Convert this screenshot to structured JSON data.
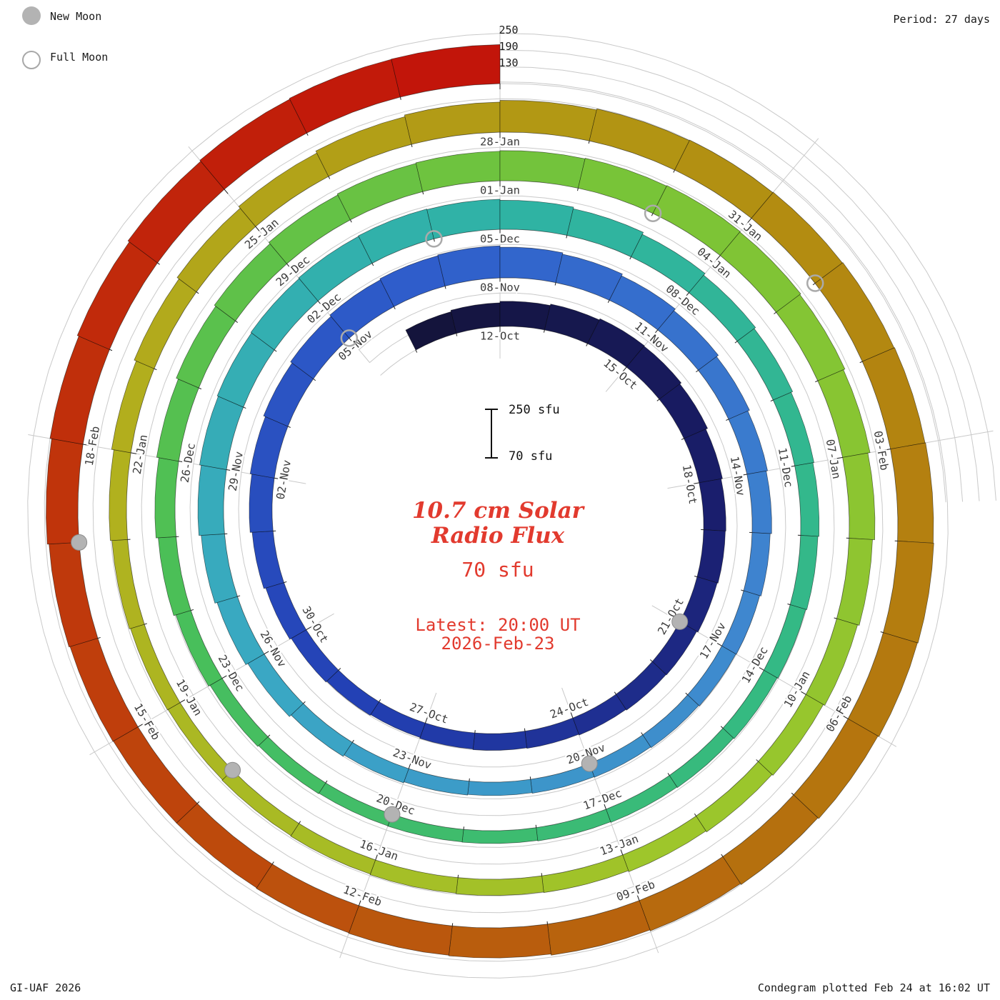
{
  "colors": {
    "accent_red": "#e23a2e",
    "moon_gray": "#b3b3b3",
    "grid_gray": "#c9c9c9",
    "label_gray": "#3c3c3c"
  },
  "legend": {
    "new_moon_label": "New Moon",
    "full_moon_label": "Full Moon"
  },
  "header": {
    "period": "Period: 27 days"
  },
  "axis": {
    "labels": [
      "250",
      "190",
      "130"
    ]
  },
  "scale": {
    "top": "250 sfu",
    "bottom": "70 sfu"
  },
  "center": {
    "title_line1": "10.7 cm Solar",
    "title_line2": "Radio Flux",
    "value": "70 sfu",
    "latest_line1": "Latest: 20:00 UT",
    "latest_line2": "2026-Feb-23"
  },
  "footer": {
    "left": "GI-UAF 2026",
    "right": "Condegram plotted Feb 24 at 16:02 UT"
  },
  "chart_data": {
    "type": "spiral_bar_condegram",
    "title": "10.7 cm Solar Radio Flux",
    "units": "sfu",
    "baseline_sfu": 70,
    "period_days": 27,
    "radial_gridlines_sfu": [
      130,
      190,
      250
    ],
    "start_date": "2025-10-10",
    "end_date": "2026-02-23",
    "values_sfu": [
      150,
      155,
      160,
      165,
      170,
      168,
      162,
      155,
      150,
      148,
      145,
      140,
      138,
      135,
      132,
      130,
      128,
      125,
      128,
      132,
      138,
      145,
      152,
      158,
      165,
      172,
      178,
      182,
      185,
      180,
      175,
      168,
      160,
      152,
      145,
      140,
      135,
      130,
      128,
      125,
      122,
      120,
      118,
      120,
      124,
      130,
      138,
      146,
      154,
      162,
      168,
      172,
      175,
      178,
      180,
      178,
      174,
      168,
      160,
      152,
      146,
      140,
      136,
      132,
      128,
      125,
      122,
      120,
      118,
      116,
      115,
      114,
      116,
      120,
      126,
      134,
      142,
      150,
      158,
      164,
      170,
      174,
      176,
      178,
      180,
      182,
      180,
      176,
      170,
      162,
      154,
      148,
      142,
      138,
      134,
      130,
      128,
      126,
      124,
      122,
      120,
      122,
      126,
      132,
      140,
      148,
      156,
      164,
      172,
      178,
      184,
      188,
      190,
      192,
      194,
      196,
      198,
      200,
      198,
      194,
      190,
      186,
      182,
      178,
      176,
      174,
      172,
      172,
      174,
      178,
      184,
      190,
      196,
      202,
      206,
      209,
      210
    ],
    "tick_labels_start": "2025-10-12",
    "tick_label_step_days": 3,
    "tick_labels": [
      "12-Oct",
      "15-Oct",
      "18-Oct",
      "21-Oct",
      "24-Oct",
      "27-Oct",
      "30-Oct",
      "02-Nov",
      "05-Nov",
      "08-Nov",
      "11-Nov",
      "14-Nov",
      "17-Nov",
      "20-Nov",
      "23-Nov",
      "26-Nov",
      "29-Nov",
      "02-Dec",
      "05-Dec",
      "08-Dec",
      "11-Dec",
      "14-Dec",
      "17-Dec",
      "20-Dec",
      "23-Dec",
      "26-Dec",
      "29-Dec",
      "01-Jan",
      "04-Jan",
      "07-Jan",
      "10-Jan",
      "13-Jan",
      "16-Jan",
      "19-Jan",
      "22-Jan",
      "25-Jan",
      "28-Jan",
      "31-Jan",
      "03-Feb",
      "06-Feb",
      "09-Feb",
      "12-Feb",
      "15-Feb",
      "18-Feb"
    ],
    "new_moons": [
      "2025-10-21",
      "2025-11-20",
      "2025-12-20",
      "2026-01-18",
      "2026-02-17"
    ],
    "full_moons": [
      "2025-11-05",
      "2025-12-04",
      "2026-01-03",
      "2026-02-01"
    ],
    "palette": [
      [
        0.0,
        "#14143c"
      ],
      [
        0.06,
        "#1a1e6e"
      ],
      [
        0.13,
        "#2340b4"
      ],
      [
        0.2,
        "#2f5ecb"
      ],
      [
        0.27,
        "#3f86cf"
      ],
      [
        0.34,
        "#3aa8c4"
      ],
      [
        0.41,
        "#2fb3a4"
      ],
      [
        0.48,
        "#35ba80"
      ],
      [
        0.55,
        "#4abf58"
      ],
      [
        0.62,
        "#7ac437"
      ],
      [
        0.69,
        "#9ec62b"
      ],
      [
        0.76,
        "#b2b01e"
      ],
      [
        0.82,
        "#b29212"
      ],
      [
        0.88,
        "#b5720e"
      ],
      [
        0.94,
        "#bf3f0c"
      ],
      [
        1.0,
        "#c2150a"
      ]
    ]
  }
}
